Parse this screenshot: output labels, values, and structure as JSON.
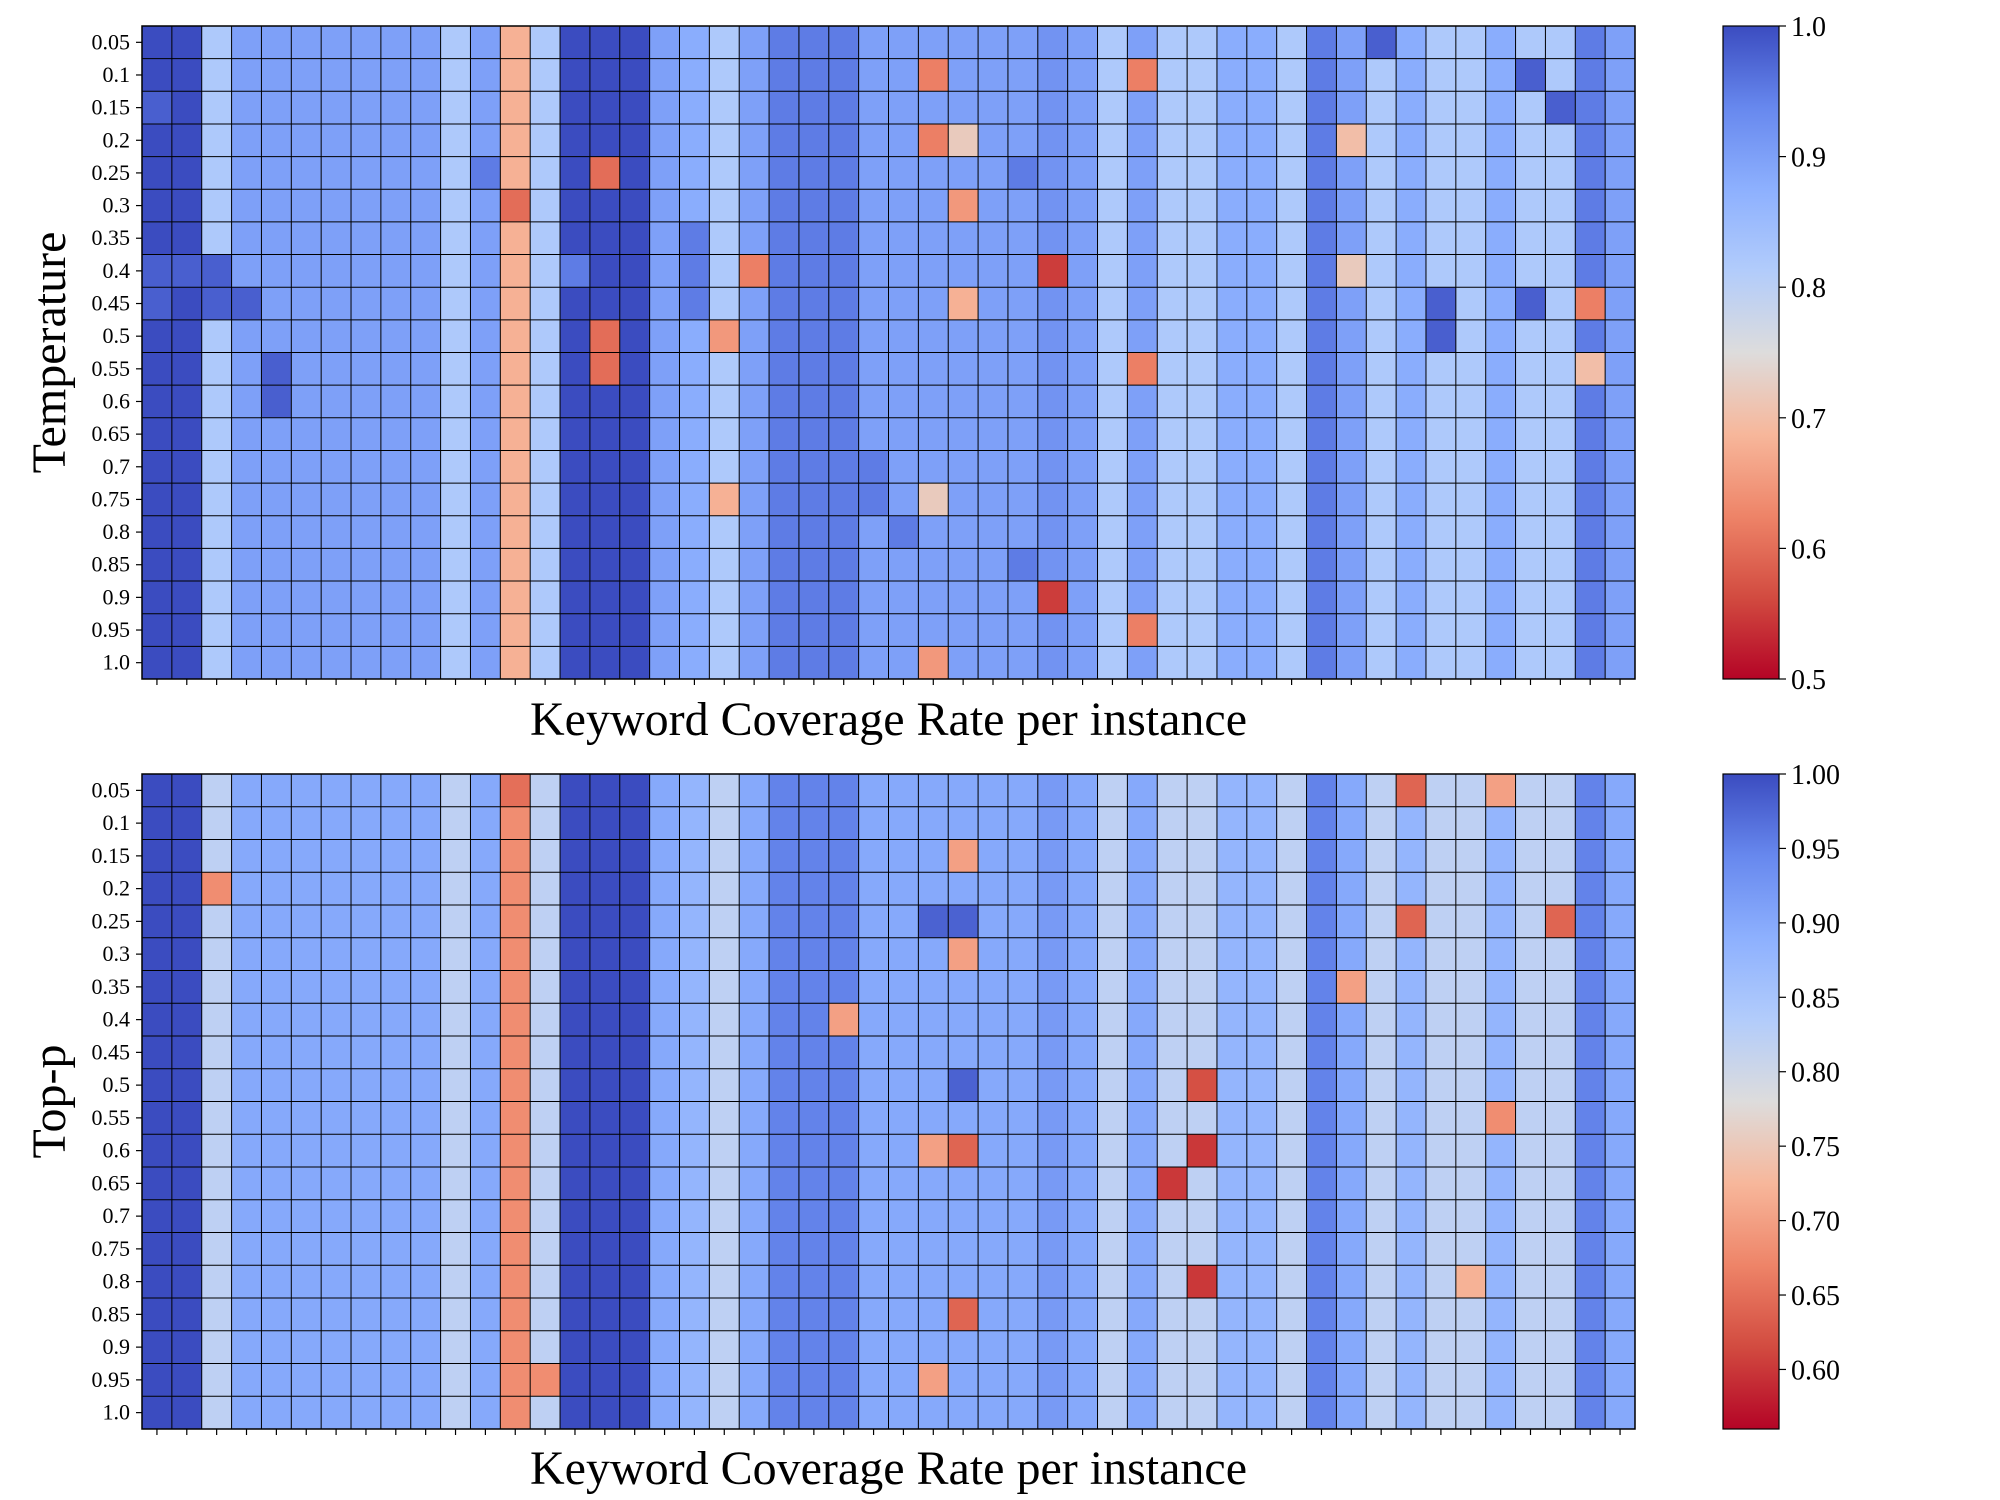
{
  "chart_data": [
    {
      "type": "heatmap",
      "title": "",
      "xlabel": "Keyword Coverage Rate per instance",
      "ylabel": "Temperature",
      "ytick_labels": [
        "0.05",
        "0.1",
        "0.15",
        "0.2",
        "0.25",
        "0.3",
        "0.35",
        "0.4",
        "0.45",
        "0.5",
        "0.55",
        "0.6",
        "0.65",
        "0.7",
        "0.75",
        "0.8",
        "0.85",
        "0.9",
        "0.95",
        "1.0"
      ],
      "n_columns": 50,
      "colormap": "coolwarm",
      "vmin": 0.5,
      "vmax": 1.0,
      "colorbar_ticks": [
        "0.5",
        "0.6",
        "0.7",
        "0.8",
        "0.9",
        "1.0"
      ],
      "colorbar_tick_values": [
        0.5,
        0.6,
        0.7,
        0.8,
        0.9,
        1.0
      ],
      "column_base_values": [
        1.0,
        1.0,
        0.82,
        0.9,
        0.9,
        0.9,
        0.9,
        0.9,
        0.9,
        0.9,
        0.82,
        0.9,
        0.68,
        0.82,
        1.0,
        1.0,
        1.0,
        0.9,
        0.88,
        0.82,
        0.9,
        0.95,
        0.95,
        0.95,
        0.9,
        0.9,
        0.9,
        0.9,
        0.9,
        0.9,
        0.92,
        0.9,
        0.82,
        0.9,
        0.82,
        0.82,
        0.88,
        0.88,
        0.82,
        0.95,
        0.9,
        0.82,
        0.88,
        0.82,
        0.82,
        0.88,
        0.82,
        0.82,
        0.95,
        0.9
      ],
      "overrides": [
        [
          2,
          0,
          0.98
        ],
        [
          7,
          0,
          0.98
        ],
        [
          8,
          0,
          0.98
        ],
        [
          7,
          1,
          0.98
        ],
        [
          7,
          2,
          0.98
        ],
        [
          8,
          2,
          0.98
        ],
        [
          8,
          3,
          0.98
        ],
        [
          10,
          4,
          0.98
        ],
        [
          11,
          4,
          0.98
        ],
        [
          5,
          12,
          0.6
        ],
        [
          4,
          15,
          0.6
        ],
        [
          9,
          15,
          0.6
        ],
        [
          10,
          15,
          0.6
        ],
        [
          3,
          27,
          0.72
        ],
        [
          5,
          27,
          0.65
        ],
        [
          8,
          27,
          0.68
        ],
        [
          4,
          29,
          0.95
        ],
        [
          16,
          29,
          0.95
        ],
        [
          7,
          30,
          0.55
        ],
        [
          17,
          30,
          0.55
        ],
        [
          1,
          26,
          0.62
        ],
        [
          3,
          26,
          0.62
        ],
        [
          14,
          26,
          0.72
        ],
        [
          19,
          26,
          0.65
        ],
        [
          7,
          20,
          0.62
        ],
        [
          9,
          19,
          0.65
        ],
        [
          14,
          19,
          0.68
        ],
        [
          1,
          33,
          0.62
        ],
        [
          10,
          33,
          0.62
        ],
        [
          18,
          33,
          0.62
        ],
        [
          3,
          40,
          0.7
        ],
        [
          7,
          40,
          0.72
        ],
        [
          0,
          41,
          0.98
        ],
        [
          8,
          43,
          0.98
        ],
        [
          9,
          43,
          0.98
        ],
        [
          1,
          46,
          0.98
        ],
        [
          8,
          46,
          0.98
        ],
        [
          2,
          47,
          0.98
        ],
        [
          8,
          48,
          0.62
        ],
        [
          10,
          48,
          0.7
        ],
        [
          6,
          18,
          0.95
        ],
        [
          7,
          18,
          0.95
        ],
        [
          8,
          18,
          0.95
        ],
        [
          5,
          22,
          0.95
        ],
        [
          6,
          22,
          0.95
        ],
        [
          9,
          23,
          0.95
        ],
        [
          13,
          24,
          0.95
        ],
        [
          14,
          24,
          0.95
        ],
        [
          15,
          25,
          0.95
        ],
        [
          16,
          21,
          0.95
        ],
        [
          17,
          21,
          0.95
        ],
        [
          18,
          22,
          0.95
        ],
        [
          4,
          11,
          0.95
        ],
        [
          7,
          14,
          0.95
        ]
      ]
    },
    {
      "type": "heatmap",
      "title": "",
      "xlabel": "Keyword Coverage Rate per instance",
      "ylabel": "Top-p",
      "ytick_labels": [
        "0.05",
        "0.1",
        "0.15",
        "0.2",
        "0.25",
        "0.3",
        "0.35",
        "0.4",
        "0.45",
        "0.5",
        "0.55",
        "0.6",
        "0.65",
        "0.7",
        "0.75",
        "0.8",
        "0.85",
        "0.9",
        "0.95",
        "1.0"
      ],
      "n_columns": 50,
      "colormap": "coolwarm",
      "vmin": 0.56,
      "vmax": 1.0,
      "colorbar_ticks": [
        "0.60",
        "0.65",
        "0.70",
        "0.75",
        "0.80",
        "0.85",
        "0.90",
        "0.95",
        "1.00"
      ],
      "colorbar_tick_values": [
        0.6,
        0.65,
        0.7,
        0.75,
        0.8,
        0.85,
        0.9,
        0.95,
        1.0
      ],
      "column_base_values": [
        1.0,
        1.0,
        0.82,
        0.9,
        0.9,
        0.9,
        0.9,
        0.9,
        0.9,
        0.9,
        0.82,
        0.9,
        0.68,
        0.82,
        1.0,
        1.0,
        1.0,
        0.9,
        0.88,
        0.82,
        0.9,
        0.95,
        0.95,
        0.95,
        0.9,
        0.9,
        0.9,
        0.9,
        0.9,
        0.9,
        0.92,
        0.9,
        0.82,
        0.9,
        0.82,
        0.82,
        0.88,
        0.88,
        0.82,
        0.95,
        0.9,
        0.82,
        0.88,
        0.82,
        0.82,
        0.88,
        0.82,
        0.82,
        0.95,
        0.9
      ],
      "overrides": [
        [
          0,
          12,
          0.65
        ],
        [
          3,
          2,
          0.68
        ],
        [
          4,
          27,
          0.95
        ],
        [
          9,
          35,
          0.62
        ],
        [
          11,
          35,
          0.6
        ],
        [
          15,
          35,
          0.6
        ],
        [
          12,
          34,
          0.6
        ],
        [
          0,
          42,
          0.64
        ],
        [
          4,
          42,
          0.64
        ],
        [
          4,
          47,
          0.64
        ],
        [
          0,
          45,
          0.7
        ],
        [
          10,
          45,
          0.68
        ],
        [
          15,
          44,
          0.72
        ],
        [
          6,
          40,
          0.7
        ],
        [
          2,
          27,
          0.7
        ],
        [
          5,
          27,
          0.7
        ],
        [
          11,
          27,
          0.64
        ],
        [
          16,
          27,
          0.64
        ],
        [
          11,
          26,
          0.7
        ],
        [
          18,
          26,
          0.7
        ],
        [
          18,
          12,
          0.68
        ],
        [
          18,
          13,
          0.68
        ],
        [
          7,
          23,
          0.7
        ],
        [
          4,
          26,
          0.98
        ],
        [
          4,
          27,
          0.98
        ],
        [
          9,
          27,
          0.98
        ]
      ]
    }
  ],
  "legend_swatches": []
}
